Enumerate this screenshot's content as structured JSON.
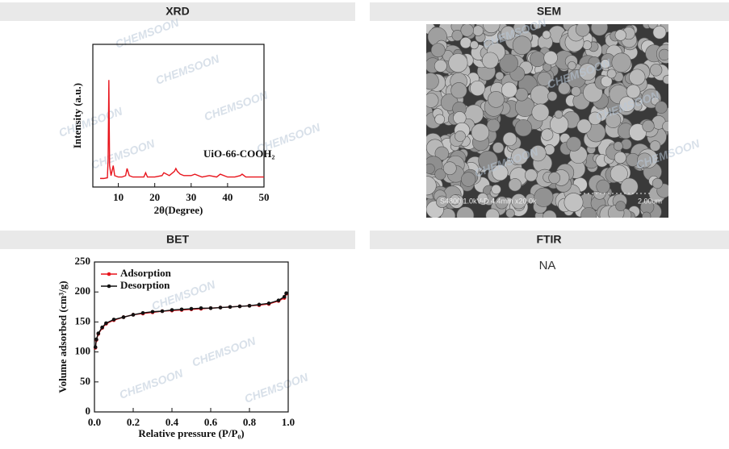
{
  "sections": [
    {
      "title": "XRD"
    },
    {
      "title": "SEM"
    },
    {
      "title": "BET"
    },
    {
      "title": "FTIR",
      "text": "NA"
    }
  ],
  "watermark": "CHEMSOON",
  "sem": {
    "caption": "S4800 1.0kV-D 4.4mm x20.0k",
    "scale": "2.00um"
  },
  "chart_data": [
    {
      "type": "line",
      "x_label": "2θ(Degree)",
      "y_label": "Intensity (a.u.)",
      "annotation": "UiO-66-COOH₂",
      "color": "#e8141c",
      "x": [
        5,
        6,
        7,
        7.2,
        7.4,
        7.6,
        8,
        8.6,
        9,
        10,
        11,
        12,
        12.4,
        13,
        14,
        15,
        17,
        17.5,
        18,
        20,
        22,
        22.5,
        24,
        25.4,
        25.8,
        26.2,
        27,
        28,
        30,
        31,
        33,
        35,
        37,
        38,
        40,
        42,
        43.5,
        44,
        45,
        47,
        49,
        50
      ],
      "values": [
        6,
        6,
        6.5,
        20,
        75,
        15,
        8,
        15,
        8,
        7,
        7,
        8,
        13,
        8,
        7,
        7,
        7,
        10,
        7,
        7,
        8,
        10,
        8,
        11,
        13,
        11,
        9,
        8,
        8,
        9,
        7,
        8,
        7,
        9,
        7,
        7,
        8,
        9,
        7,
        7,
        7,
        7
      ],
      "xlim": [
        3,
        50
      ],
      "xticks": [
        10,
        20,
        30,
        40,
        50
      ],
      "ylim": [
        0,
        100
      ]
    },
    {
      "type": "line",
      "x_label": "Relative pressure (P/P₀)",
      "y_label": "Volume adsorbed (cm³/g)",
      "legend": "upper left",
      "x": [
        0.005,
        0.01,
        0.02,
        0.04,
        0.06,
        0.1,
        0.15,
        0.2,
        0.25,
        0.3,
        0.35,
        0.4,
        0.45,
        0.5,
        0.55,
        0.6,
        0.65,
        0.7,
        0.75,
        0.8,
        0.85,
        0.9,
        0.95,
        0.98,
        0.99
      ],
      "series": [
        {
          "name": "Adsorption",
          "color": "#e8141c",
          "values": [
            107,
            120,
            130,
            140,
            147,
            153,
            158,
            162,
            164,
            166,
            168,
            169,
            170,
            171,
            172,
            173,
            174,
            175,
            176,
            177,
            178,
            180,
            185,
            190,
            197
          ]
        },
        {
          "name": "Desorption",
          "color": "#111111",
          "values": [
            108,
            121,
            131,
            141,
            148,
            154,
            158,
            162,
            165,
            167,
            168,
            170,
            171,
            172,
            173,
            173,
            174,
            175,
            176,
            177,
            179,
            181,
            186,
            192,
            198
          ]
        }
      ],
      "xlim": [
        0,
        1
      ],
      "xticks": [
        {
          "value": 0,
          "label": "0.0"
        },
        {
          "value": 0.2,
          "label": "0.2"
        },
        {
          "value": 0.4,
          "label": "0.4"
        },
        {
          "value": 0.6,
          "label": "0.6"
        },
        {
          "value": 0.8,
          "label": "0.8"
        },
        {
          "value": 1,
          "label": "1.0"
        }
      ],
      "ylim": [
        0,
        250
      ],
      "yticks": [
        0,
        50,
        100,
        150,
        200,
        250
      ]
    }
  ]
}
